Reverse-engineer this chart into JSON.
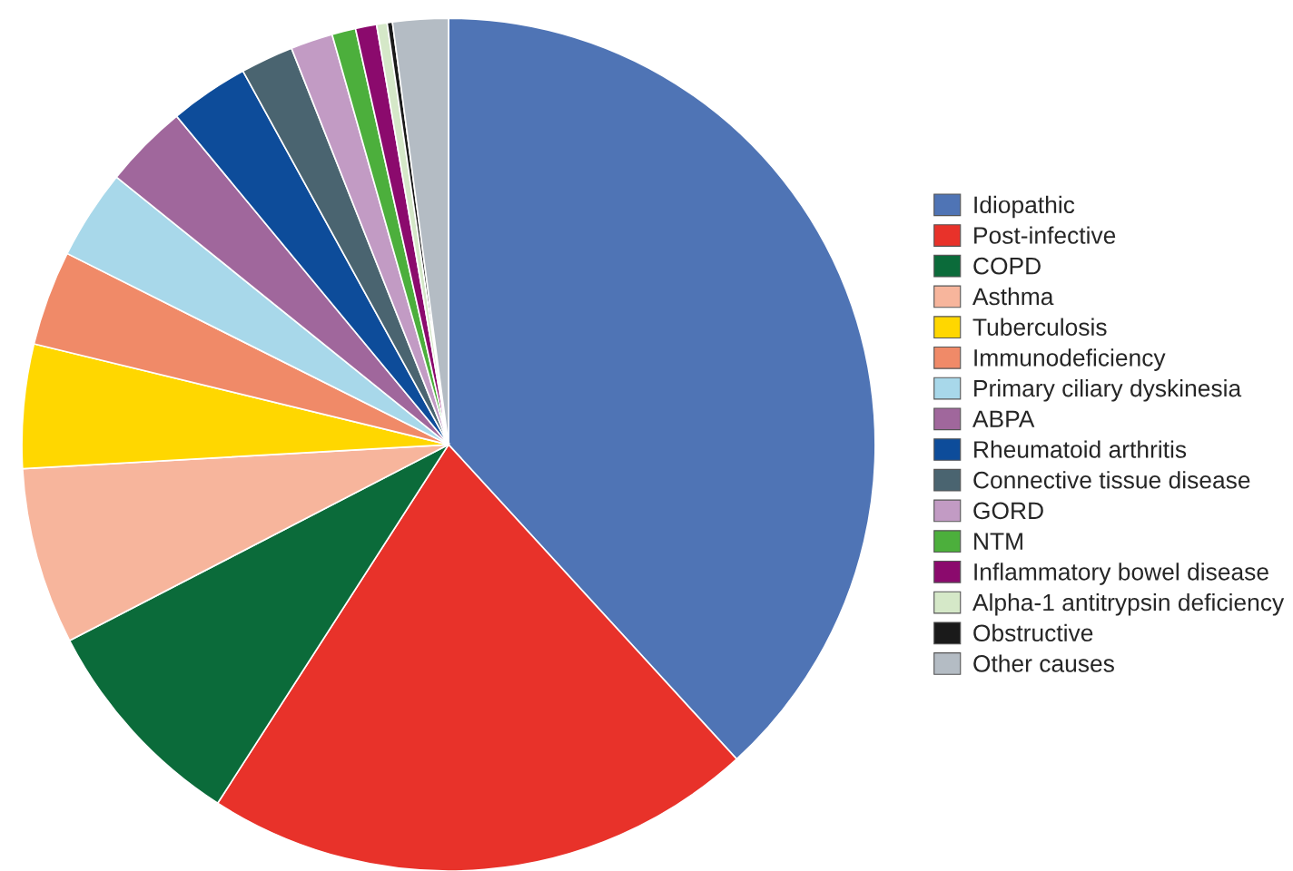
{
  "chart_data": {
    "type": "pie",
    "legend": "right",
    "categories": [
      "Idiopathic",
      "Post-infective",
      "COPD",
      "Asthma",
      "Tuberculosis",
      "Immunodeficiency",
      "Primary ciliary dyskinesia",
      "ABPA",
      "Rheumatoid arthritis",
      "Connective tissue disease",
      "GORD",
      "NTM",
      "Inflammatory bowel disease",
      "Alpha-1 antitrypsin deficiency",
      "Obstructive",
      "Other causes"
    ],
    "values": [
      38.2,
      20.9,
      8.3,
      6.7,
      4.7,
      3.6,
      3.4,
      3.2,
      3.0,
      2.0,
      1.6,
      0.9,
      0.8,
      0.4,
      0.2,
      2.1
    ],
    "colors": [
      "#4f74b5",
      "#e8322a",
      "#0b6b3a",
      "#f7b59c",
      "#ffd700",
      "#f08a68",
      "#a8d8ea",
      "#a0679c",
      "#0d4c9a",
      "#4a6470",
      "#c29bc4",
      "#4caf3c",
      "#8b0a6d",
      "#d5e8c8",
      "#1a1a1a",
      "#b4bcc4"
    ]
  }
}
